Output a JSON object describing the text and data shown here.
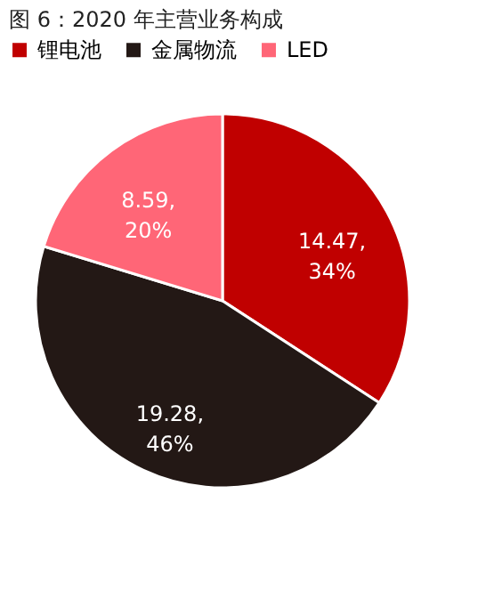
{
  "chart_data": {
    "type": "pie",
    "title": "图 6：2020 年主营业务构成",
    "categories": [
      "锂电池",
      "金属物流",
      "LED"
    ],
    "values": [
      14.47,
      19.28,
      8.59
    ],
    "colors": [
      "#c00000",
      "#231815",
      "#ff6677"
    ],
    "value_labels": [
      "14.47,\n34%",
      "19.28,\n46%",
      "8.59,\n20%"
    ],
    "legend": "top"
  }
}
